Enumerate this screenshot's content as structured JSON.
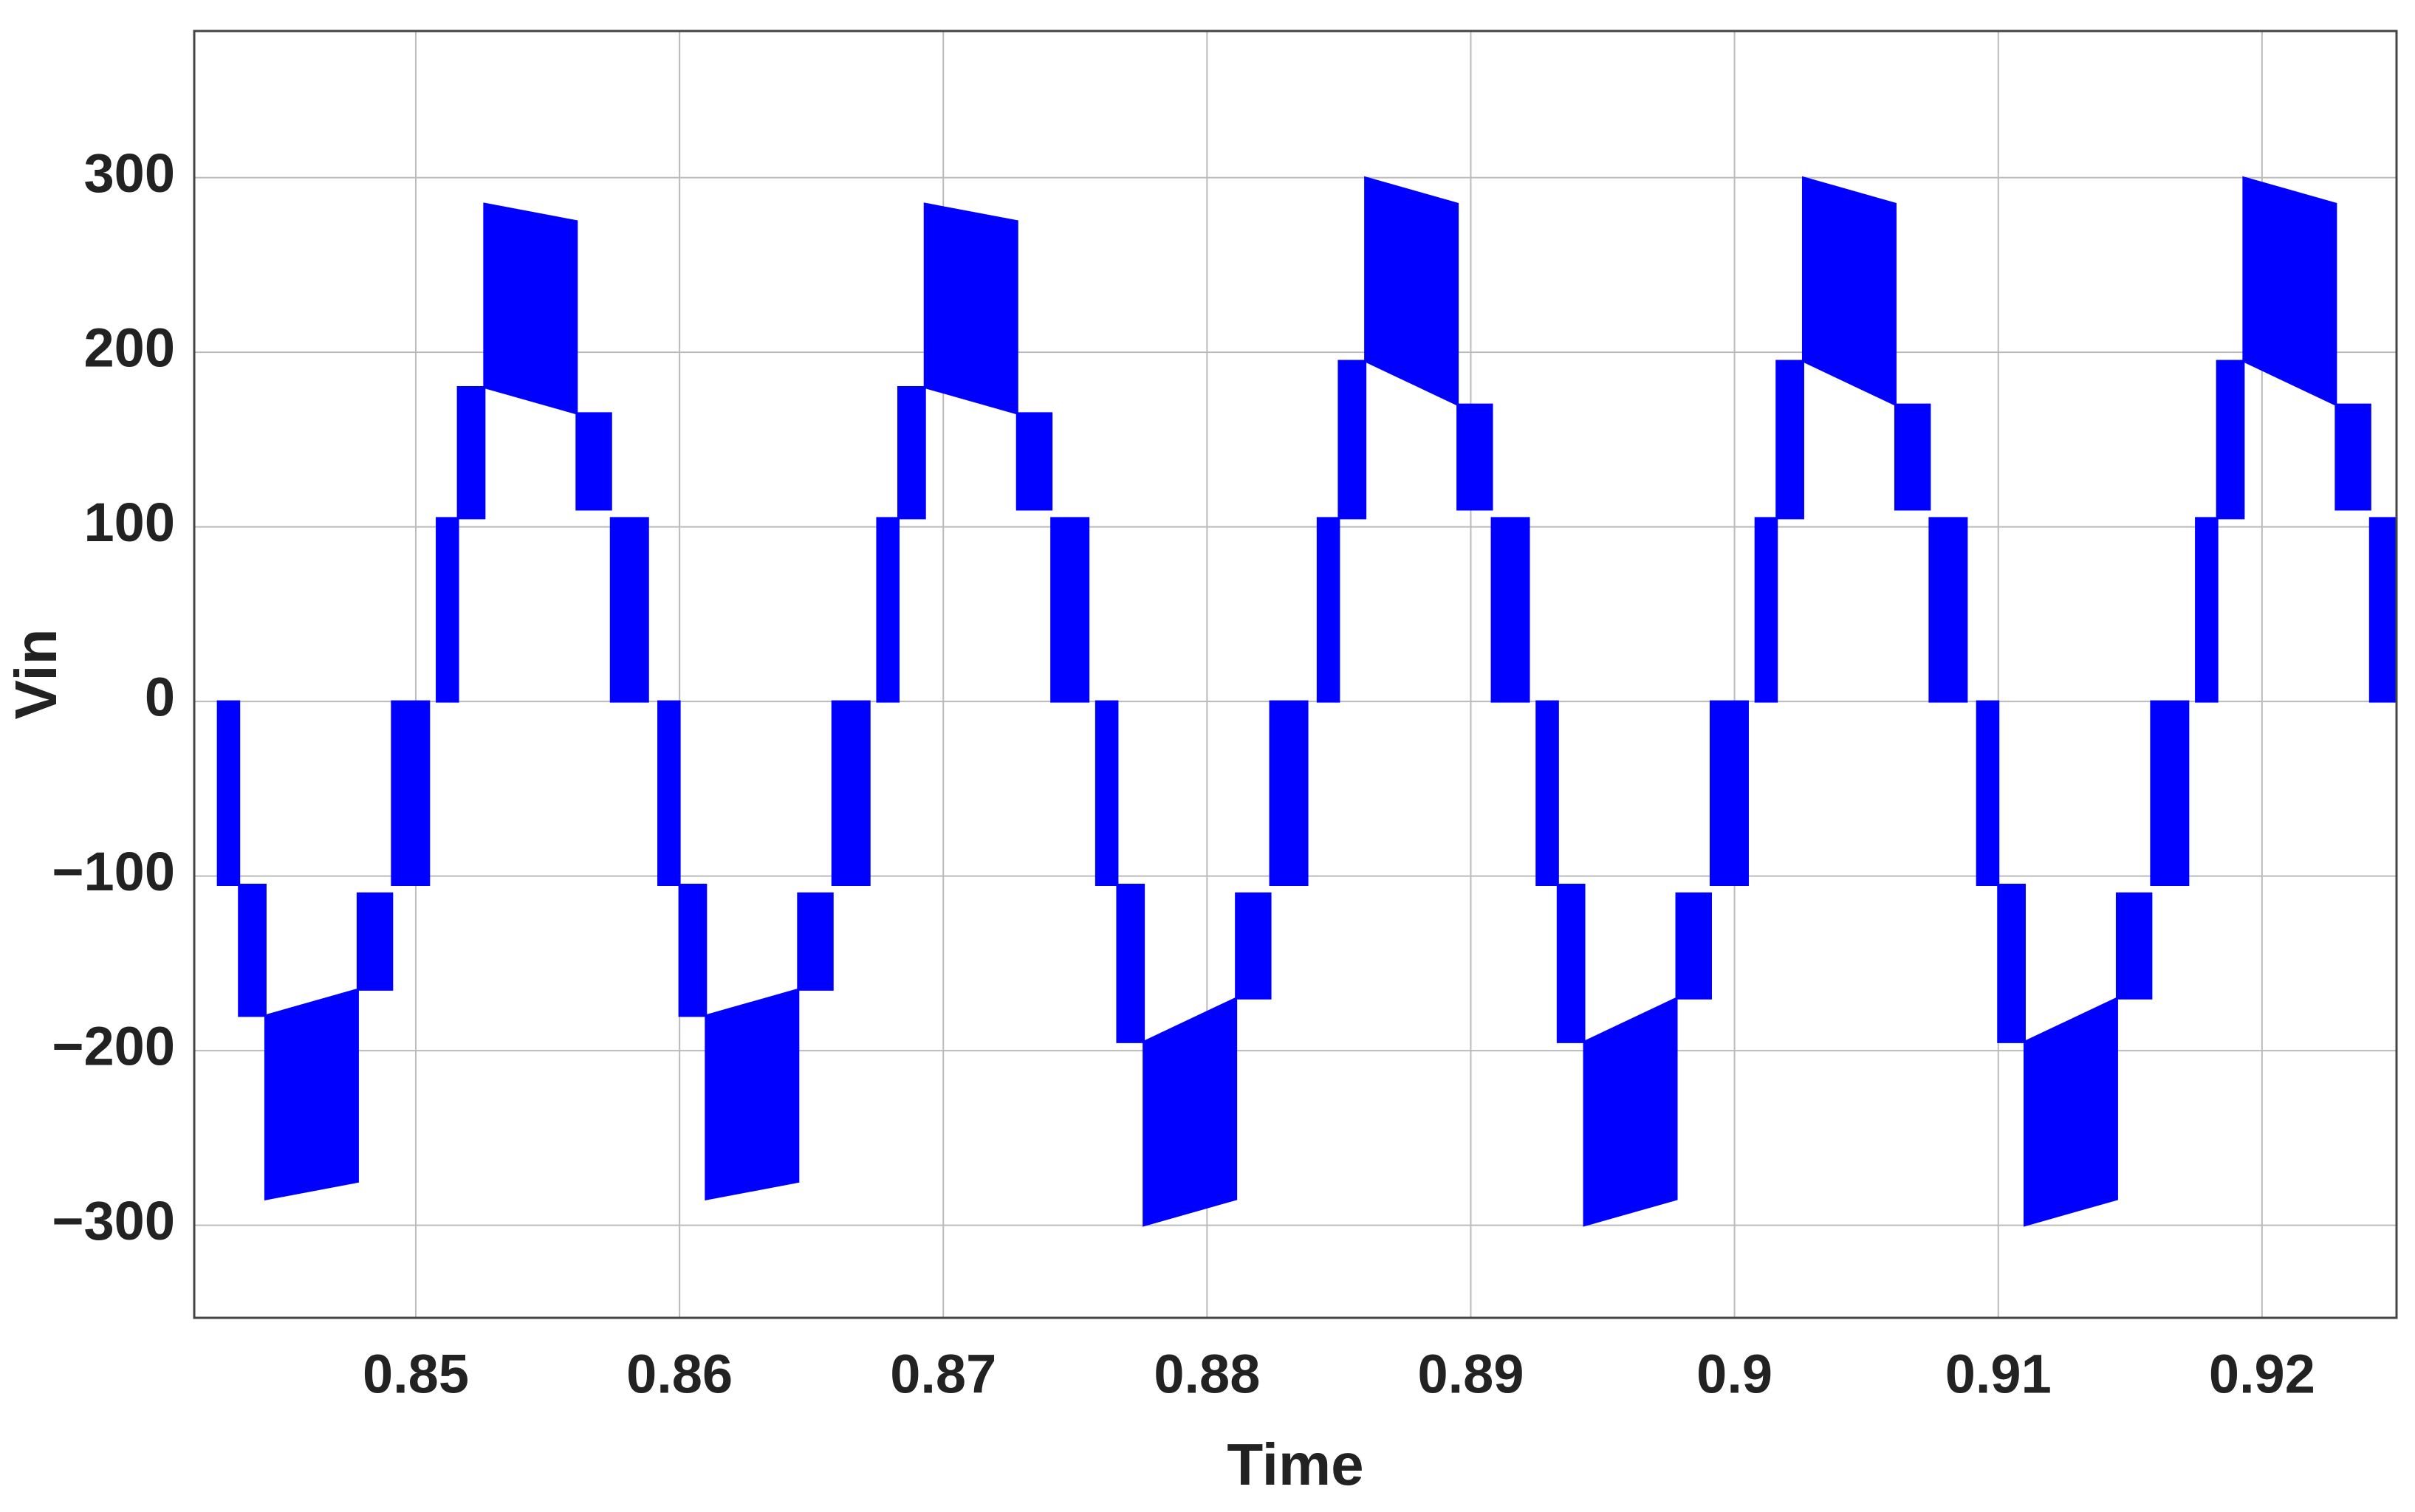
{
  "chart_data": {
    "type": "pwm-bands",
    "x_label": "Time",
    "y_label": "Vin",
    "color": "#0000ff",
    "grid": true,
    "xlim": [
      0.8416,
      0.9251
    ],
    "ylim": [
      -353,
      384
    ],
    "xticks": [
      0.85,
      0.86,
      0.87,
      0.88,
      0.89,
      0.9,
      0.91,
      0.92
    ],
    "yticks": [
      {
        "value": -300,
        "label": "−300"
      },
      {
        "value": -200,
        "label": "−200"
      },
      {
        "value": -100,
        "label": "−100"
      },
      0,
      100,
      200,
      300
    ],
    "bands": [
      {
        "x": [
          0.8425,
          0.8433
        ],
        "low": [
          -105,
          -105
        ],
        "high": [
          0,
          0
        ]
      },
      {
        "x": [
          0.8433,
          0.8443
        ],
        "low": [
          -180,
          -180
        ],
        "high": [
          -105,
          -105
        ]
      },
      {
        "x": [
          0.8443,
          0.8478
        ],
        "low": [
          -285,
          -275
        ],
        "high": [
          -180,
          -165
        ]
      },
      {
        "x": [
          0.8478,
          0.8491
        ],
        "low": [
          -165,
          -165
        ],
        "high": [
          -110,
          -110
        ]
      },
      {
        "x": [
          0.8491,
          0.8505
        ],
        "low": [
          -105,
          -105
        ],
        "high": [
          0,
          0
        ]
      },
      {
        "x": [
          0.8508,
          0.8516
        ],
        "low": [
          0,
          0
        ],
        "high": [
          105,
          105
        ]
      },
      {
        "x": [
          0.8516,
          0.8526
        ],
        "low": [
          105,
          105
        ],
        "high": [
          180,
          180
        ]
      },
      {
        "x": [
          0.8526,
          0.8561
        ],
        "low": [
          180,
          165
        ],
        "high": [
          285,
          275
        ]
      },
      {
        "x": [
          0.8561,
          0.8574
        ],
        "low": [
          110,
          110
        ],
        "high": [
          165,
          165
        ]
      },
      {
        "x": [
          0.8574,
          0.8588
        ],
        "low": [
          0,
          0
        ],
        "high": [
          105,
          105
        ]
      },
      {
        "x": [
          0.8592,
          0.86
        ],
        "low": [
          -105,
          -105
        ],
        "high": [
          0,
          0
        ]
      },
      {
        "x": [
          0.86,
          0.861
        ],
        "low": [
          -180,
          -180
        ],
        "high": [
          -105,
          -105
        ]
      },
      {
        "x": [
          0.861,
          0.8645
        ],
        "low": [
          -285,
          -275
        ],
        "high": [
          -180,
          -165
        ]
      },
      {
        "x": [
          0.8645,
          0.8658
        ],
        "low": [
          -165,
          -165
        ],
        "high": [
          -110,
          -110
        ]
      },
      {
        "x": [
          0.8658,
          0.8672
        ],
        "low": [
          -105,
          -105
        ],
        "high": [
          0,
          0
        ]
      },
      {
        "x": [
          0.8675,
          0.8683
        ],
        "low": [
          0,
          0
        ],
        "high": [
          105,
          105
        ]
      },
      {
        "x": [
          0.8683,
          0.8693
        ],
        "low": [
          105,
          105
        ],
        "high": [
          180,
          180
        ]
      },
      {
        "x": [
          0.8693,
          0.8728
        ],
        "low": [
          180,
          165
        ],
        "high": [
          285,
          275
        ]
      },
      {
        "x": [
          0.8728,
          0.8741
        ],
        "low": [
          110,
          110
        ],
        "high": [
          165,
          165
        ]
      },
      {
        "x": [
          0.8741,
          0.8755
        ],
        "low": [
          0,
          0
        ],
        "high": [
          105,
          105
        ]
      },
      {
        "x": [
          0.8758,
          0.8766
        ],
        "low": [
          -105,
          -105
        ],
        "high": [
          0,
          0
        ]
      },
      {
        "x": [
          0.8766,
          0.8776
        ],
        "low": [
          -195,
          -195
        ],
        "high": [
          -105,
          -105
        ]
      },
      {
        "x": [
          0.8776,
          0.8811
        ],
        "low": [
          -300,
          -285
        ],
        "high": [
          -195,
          -170
        ]
      },
      {
        "x": [
          0.8811,
          0.8824
        ],
        "low": [
          -170,
          -170
        ],
        "high": [
          -110,
          -110
        ]
      },
      {
        "x": [
          0.8824,
          0.8838
        ],
        "low": [
          -105,
          -105
        ],
        "high": [
          0,
          0
        ]
      },
      {
        "x": [
          0.8842,
          0.885
        ],
        "low": [
          0,
          0
        ],
        "high": [
          105,
          105
        ]
      },
      {
        "x": [
          0.885,
          0.886
        ],
        "low": [
          105,
          105
        ],
        "high": [
          195,
          195
        ]
      },
      {
        "x": [
          0.886,
          0.8895
        ],
        "low": [
          195,
          170
        ],
        "high": [
          300,
          285
        ]
      },
      {
        "x": [
          0.8895,
          0.8908
        ],
        "low": [
          110,
          110
        ],
        "high": [
          170,
          170
        ]
      },
      {
        "x": [
          0.8908,
          0.8922
        ],
        "low": [
          0,
          0
        ],
        "high": [
          105,
          105
        ]
      },
      {
        "x": [
          0.8925,
          0.8933
        ],
        "low": [
          -105,
          -105
        ],
        "high": [
          0,
          0
        ]
      },
      {
        "x": [
          0.8933,
          0.8943
        ],
        "low": [
          -195,
          -195
        ],
        "high": [
          -105,
          -105
        ]
      },
      {
        "x": [
          0.8943,
          0.8978
        ],
        "low": [
          -300,
          -285
        ],
        "high": [
          -195,
          -170
        ]
      },
      {
        "x": [
          0.8978,
          0.8991
        ],
        "low": [
          -170,
          -170
        ],
        "high": [
          -110,
          -110
        ]
      },
      {
        "x": [
          0.8991,
          0.9005
        ],
        "low": [
          -105,
          -105
        ],
        "high": [
          0,
          0
        ]
      },
      {
        "x": [
          0.9008,
          0.9016
        ],
        "low": [
          0,
          0
        ],
        "high": [
          105,
          105
        ]
      },
      {
        "x": [
          0.9016,
          0.9026
        ],
        "low": [
          105,
          105
        ],
        "high": [
          195,
          195
        ]
      },
      {
        "x": [
          0.9026,
          0.9061
        ],
        "low": [
          195,
          170
        ],
        "high": [
          300,
          285
        ]
      },
      {
        "x": [
          0.9061,
          0.9074
        ],
        "low": [
          110,
          110
        ],
        "high": [
          170,
          170
        ]
      },
      {
        "x": [
          0.9074,
          0.9088
        ],
        "low": [
          0,
          0
        ],
        "high": [
          105,
          105
        ]
      },
      {
        "x": [
          0.9092,
          0.91
        ],
        "low": [
          -105,
          -105
        ],
        "high": [
          0,
          0
        ]
      },
      {
        "x": [
          0.91,
          0.911
        ],
        "low": [
          -195,
          -195
        ],
        "high": [
          -105,
          -105
        ]
      },
      {
        "x": [
          0.911,
          0.9145
        ],
        "low": [
          -300,
          -285
        ],
        "high": [
          -195,
          -170
        ]
      },
      {
        "x": [
          0.9145,
          0.9158
        ],
        "low": [
          -170,
          -170
        ],
        "high": [
          -110,
          -110
        ]
      },
      {
        "x": [
          0.9158,
          0.9172
        ],
        "low": [
          -105,
          -105
        ],
        "high": [
          0,
          0
        ]
      },
      {
        "x": [
          0.9175,
          0.9183
        ],
        "low": [
          0,
          0
        ],
        "high": [
          105,
          105
        ]
      },
      {
        "x": [
          0.9183,
          0.9193
        ],
        "low": [
          105,
          105
        ],
        "high": [
          195,
          195
        ]
      },
      {
        "x": [
          0.9193,
          0.9228
        ],
        "low": [
          195,
          170
        ],
        "high": [
          300,
          285
        ]
      },
      {
        "x": [
          0.9228,
          0.9241
        ],
        "low": [
          110,
          110
        ],
        "high": [
          170,
          170
        ]
      },
      {
        "x": [
          0.9241,
          0.9255
        ],
        "low": [
          0,
          0
        ],
        "high": [
          105,
          105
        ]
      }
    ]
  }
}
